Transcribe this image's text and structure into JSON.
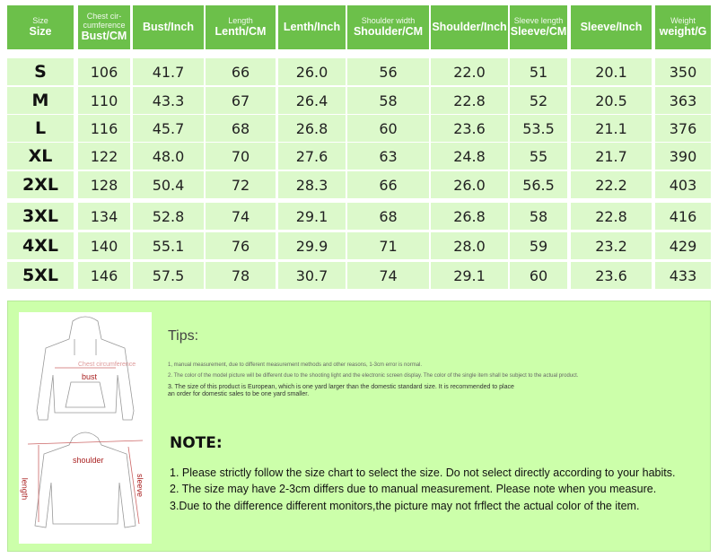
{
  "headers": [
    {
      "sub": "Size",
      "main": "Size"
    },
    {
      "sub": "Chest cir-cumference",
      "main": "Bust/CM"
    },
    {
      "sub": "",
      "main": "Bust/Inch"
    },
    {
      "sub": "Length",
      "main": "Lenth/CM"
    },
    {
      "sub": "",
      "main": "Lenth/Inch"
    },
    {
      "sub": "Shoulder width",
      "main": "Shoulder/CM"
    },
    {
      "sub": "",
      "main": "Shoulder/Inch"
    },
    {
      "sub": "Sleeve length",
      "main": "Sleeve/CM"
    },
    {
      "sub": "",
      "main": "Sleeve/Inch"
    },
    {
      "sub": "Weight",
      "main": "weight/G"
    }
  ],
  "rows": [
    [
      "S",
      "106",
      "41.7",
      "66",
      "26.0",
      "56",
      "22.0",
      "51",
      "20.1",
      "350"
    ],
    [
      "M",
      "110",
      "43.3",
      "67",
      "26.4",
      "58",
      "22.8",
      "52",
      "20.5",
      "363"
    ],
    [
      "L",
      "116",
      "45.7",
      "68",
      "26.8",
      "60",
      "23.6",
      "53.5",
      "21.1",
      "376"
    ],
    [
      "XL",
      "122",
      "48.0",
      "70",
      "27.6",
      "63",
      "24.8",
      "55",
      "21.7",
      "390"
    ],
    [
      "2XL",
      "128",
      "50.4",
      "72",
      "28.3",
      "66",
      "26.0",
      "56.5",
      "22.2",
      "403"
    ],
    [
      "3XL",
      "134",
      "52.8",
      "74",
      "29.1",
      "68",
      "26.8",
      "58",
      "22.8",
      "416"
    ],
    [
      "4XL",
      "140",
      "55.1",
      "76",
      "29.9",
      "71",
      "28.0",
      "59",
      "23.2",
      "429"
    ],
    [
      "5XL",
      "146",
      "57.5",
      "78",
      "30.7",
      "74",
      "29.1",
      "60",
      "23.6",
      "433"
    ]
  ],
  "diagram": {
    "chest": "Chest circumference",
    "bust": "bust",
    "shoulder": "shoulder",
    "length": "length",
    "sleeve": "sleeve"
  },
  "tips": {
    "title": "Tips:",
    "items": [
      "1, manual measurement, due to different measurement methods and other reasons, 1-3cm error is normal.",
      "2. The color of the model picture will be different due to the shooting light and the electronic screen display. The color of the single item shall be subject to the actual product.",
      "3. The size of this product is European, which is one yard larger than the domestic standard size. It is recommended to place an order for domestic sales to be one yard smaller."
    ]
  },
  "note": {
    "title": "NOTE:",
    "items": [
      "1. Please strictly follow the size chart to select the size. Do not select directly according to your habits.",
      "2. The size may have 2-3cm differs due to manual measurement. Please note when you measure.",
      "3.Due to the difference different monitors,the picture may not frflect the actual color of the item."
    ]
  },
  "colors": {
    "header": "#6cc04a",
    "cell": "#dcf9cb",
    "panel": "#ccffaa"
  }
}
